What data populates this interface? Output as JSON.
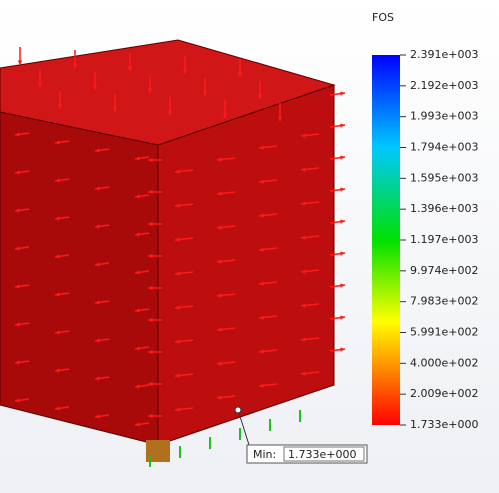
{
  "legend": {
    "title": "FOS",
    "labels": [
      "2.391e+003",
      "2.192e+003",
      "1.993e+003",
      "1.794e+003",
      "1.595e+003",
      "1.396e+003",
      "1.197e+003",
      "9.974e+002",
      "7.983e+002",
      "5.991e+002",
      "4.000e+002",
      "2.009e+002",
      "1.733e+000"
    ]
  },
  "min_annotation": {
    "label": "Min:",
    "value": "1.733e+000"
  }
}
